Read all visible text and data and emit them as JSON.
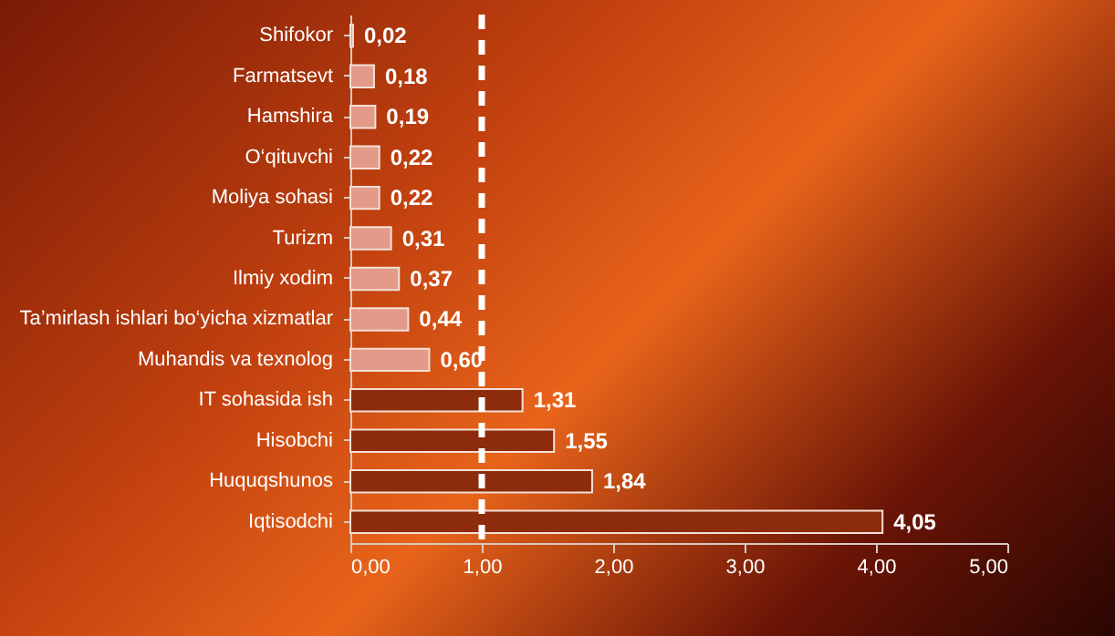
{
  "chart_data": {
    "type": "bar",
    "orientation": "horizontal",
    "categories": [
      "Shifokor",
      "Farmatsevt",
      "Hamshira",
      "O‘qituvchi",
      "Moliya sohasi",
      "Turizm",
      "Ilmiy xodim",
      "Ta’mirlash ishlari bo‘yicha xizmatlar",
      "Muhandis va texnolog",
      "IT sohasida ish",
      "Hisobchi",
      "Huquqshunos",
      "Iqtisodchi"
    ],
    "values": [
      0.02,
      0.18,
      0.19,
      0.22,
      0.22,
      0.31,
      0.37,
      0.44,
      0.6,
      1.31,
      1.55,
      1.84,
      4.05
    ],
    "colors": [
      "#e39a88",
      "#e39a88",
      "#e39a88",
      "#e39a88",
      "#e39a88",
      "#e39a88",
      "#e39a88",
      "#e39a88",
      "#e39a88",
      "#8c2c0c",
      "#8c2c0c",
      "#8c2c0c",
      "#8c2c0c"
    ],
    "value_labels": [
      "0,02",
      "0,18",
      "0,19",
      "0,22",
      "0,22",
      "0,31",
      "0,37",
      "0,44",
      "0,60",
      "1,31",
      "1,55",
      "1,84",
      "4,05"
    ],
    "xlim": [
      0,
      5
    ],
    "xticks": [
      {
        "value": 0,
        "label": "0,00"
      },
      {
        "value": 1,
        "label": "1,00"
      },
      {
        "value": 2,
        "label": "2,00"
      },
      {
        "value": 3,
        "label": "3,00"
      },
      {
        "value": 4,
        "label": "4,00"
      },
      {
        "value": 5,
        "label": "5,00"
      }
    ],
    "ref_lines": [
      {
        "axis": "x",
        "value": 1,
        "color": "#ffffff",
        "line_style": "dashed"
      }
    ],
    "grid": false
  }
}
